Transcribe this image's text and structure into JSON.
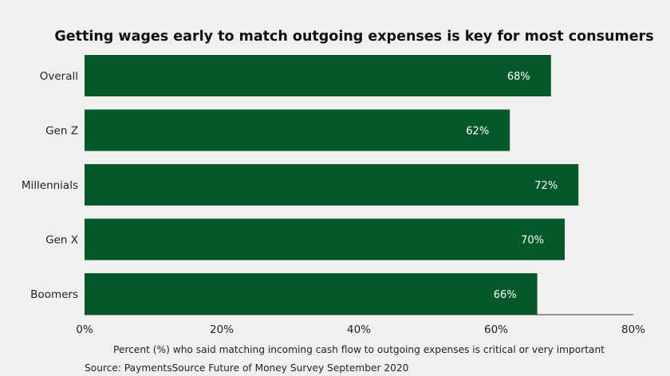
{
  "chart_data": {
    "type": "bar",
    "orientation": "horizontal",
    "title": "Getting wages early to match outgoing expenses is key for most consumers",
    "categories": [
      "Overall",
      "Gen Z",
      "Millennials",
      "Gen X",
      "Boomers"
    ],
    "values": [
      68,
      62,
      72,
      70,
      66
    ],
    "value_labels": [
      "68%",
      "62%",
      "72%",
      "70%",
      "66%"
    ],
    "xlim": [
      0,
      80
    ],
    "xticks": [
      0,
      20,
      40,
      60,
      80
    ],
    "xtick_labels": [
      "0%",
      "20%",
      "40%",
      "60%",
      "80%"
    ],
    "xlabel": "Percent (%) who said matching incoming cash flow to outgoing expenses is critical or very important",
    "ylabel": "",
    "source": "Source: PaymentsSource Future of Money Survey September 2020",
    "grid": false,
    "legend": "none",
    "colors": {
      "bar": "#04582a",
      "background": "#f0f1ef",
      "axis": "#333333"
    }
  }
}
